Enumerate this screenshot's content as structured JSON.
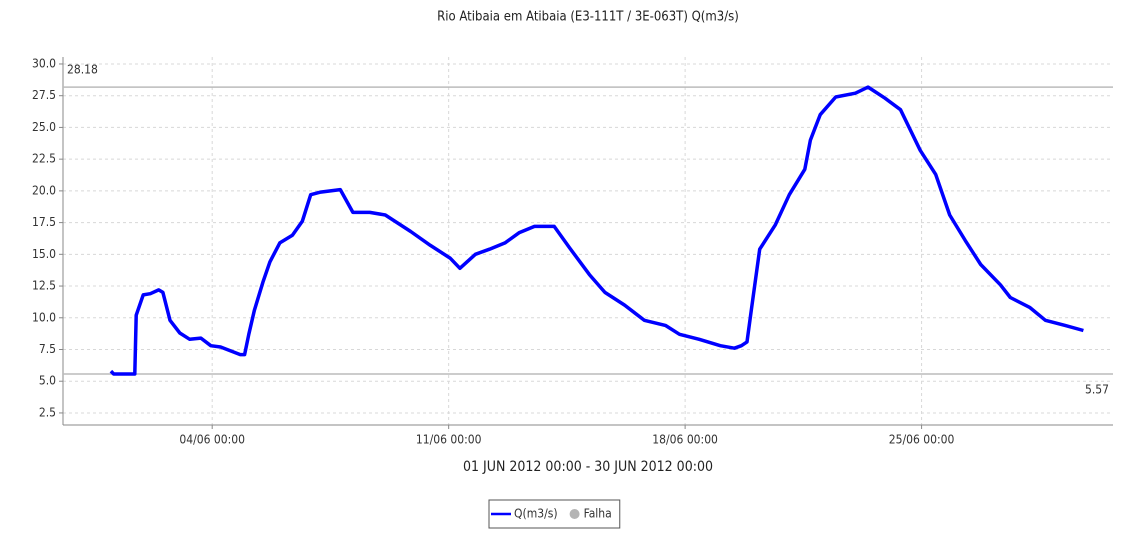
{
  "chart_data": {
    "type": "line",
    "title": "Rio Atibaia em Atibaia (E3-111T / 3E-063T) Q(m3/s)",
    "x_label": "01 JUN 2012 00:00 - 30 JUN 2012 00:00",
    "x": [
      "2012-06-01T00:00",
      "2012-06-01T02:00",
      "2012-06-01T17:00",
      "2012-06-01T18:00",
      "2012-06-01T23:00",
      "2012-06-02T04:00",
      "2012-06-02T10:00",
      "2012-06-02T13:00",
      "2012-06-02T18:00",
      "2012-06-03T01:00",
      "2012-06-03T08:00",
      "2012-06-03T16:00",
      "2012-06-03T23:00",
      "2012-06-04T06:00",
      "2012-06-04T20:00",
      "2012-06-04T23:00",
      "2012-06-05T02:00",
      "2012-06-05T06:00",
      "2012-06-05T12:00",
      "2012-06-05T17:00",
      "2012-06-06T00:00",
      "2012-06-06T09:00",
      "2012-06-06T16:00",
      "2012-06-06T22:00",
      "2012-06-07T05:00",
      "2012-06-07T19:00",
      "2012-06-08T04:00",
      "2012-06-08T16:00",
      "2012-06-09T03:00",
      "2012-06-09T21:00",
      "2012-06-10T11:00",
      "2012-06-11T01:00",
      "2012-06-11T08:00",
      "2012-06-11T19:00",
      "2012-06-12T05:00",
      "2012-06-12T16:00",
      "2012-06-13T02:00",
      "2012-06-13T13:00",
      "2012-06-14T03:00",
      "2012-06-14T14:00",
      "2012-06-15T04:00",
      "2012-06-15T15:00",
      "2012-06-16T05:00",
      "2012-06-16T19:00",
      "2012-06-17T10:00",
      "2012-06-17T20:00",
      "2012-06-18T10:00",
      "2012-06-19T01:00",
      "2012-06-19T11:00",
      "2012-06-19T16:00",
      "2012-06-19T20:00",
      "2012-06-19T23:00",
      "2012-06-20T05:00",
      "2012-06-20T16:00",
      "2012-06-21T02:00",
      "2012-06-21T13:00",
      "2012-06-21T17:00",
      "2012-06-22T00:00",
      "2012-06-22T11:00",
      "2012-06-23T01:00",
      "2012-06-23T10:00",
      "2012-06-23T22:00",
      "2012-06-24T09:00",
      "2012-06-24T23:00",
      "2012-06-25T10:00",
      "2012-06-25T20:00",
      "2012-06-26T07:00",
      "2012-06-26T18:00",
      "2012-06-27T08:00",
      "2012-06-27T15:00",
      "2012-06-28T05:00",
      "2012-06-28T16:00",
      "2012-06-29T06:00",
      "2012-06-29T19:00"
    ],
    "series": [
      {
        "name": "Q(m3/s)",
        "color": "#0000ff",
        "values": [
          5.8,
          5.57,
          5.57,
          10.2,
          11.8,
          11.9,
          12.2,
          12.0,
          9.8,
          8.8,
          8.3,
          8.4,
          7.8,
          7.7,
          7.1,
          7.1,
          8.7,
          10.6,
          12.8,
          14.4,
          15.9,
          16.5,
          17.6,
          19.7,
          19.9,
          20.1,
          18.3,
          18.3,
          18.1,
          16.8,
          15.7,
          14.7,
          13.9,
          15.0,
          15.4,
          15.9,
          16.7,
          17.2,
          17.2,
          15.5,
          13.4,
          12.0,
          11.0,
          9.8,
          9.4,
          8.7,
          8.3,
          7.8,
          7.6,
          7.8,
          8.1,
          10.6,
          15.4,
          17.3,
          19.7,
          21.7,
          24.0,
          26.0,
          27.4,
          27.7,
          28.18,
          27.3,
          26.4,
          23.2,
          21.3,
          18.1,
          16.1,
          14.2,
          12.6,
          11.6,
          10.8,
          9.8,
          9.4,
          9.0
        ]
      }
    ],
    "extra_legend": [
      {
        "name": "Falha",
        "color": "#b4b4b4"
      }
    ],
    "reference_lines": [
      {
        "value": 28.18,
        "corner": "top-left"
      },
      {
        "value": 5.57,
        "corner": "bottom-right"
      }
    ],
    "xlim": [
      "2012-05-30T14:00",
      "2012-06-30T16:00"
    ],
    "xticks": [
      {
        "value": "2012-06-04T00:00",
        "label": "04/06 00:00"
      },
      {
        "value": "2012-06-11T00:00",
        "label": "11/06 00:00"
      },
      {
        "value": "2012-06-18T00:00",
        "label": "18/06 00:00"
      },
      {
        "value": "2012-06-25T00:00",
        "label": "25/06 00:00"
      }
    ],
    "ylim": [
      1.55,
      30.55
    ],
    "yticks": [
      {
        "value": 2.5,
        "label": "2.5"
      },
      {
        "value": 5,
        "label": "5.0"
      },
      {
        "value": 7.5,
        "label": "7.5"
      },
      {
        "value": 10,
        "label": "10.0"
      },
      {
        "value": 12.5,
        "label": "12.5"
      },
      {
        "value": 15,
        "label": "15.0"
      },
      {
        "value": 17.5,
        "label": "17.5"
      },
      {
        "value": 20,
        "label": "20.0"
      },
      {
        "value": 22.5,
        "label": "22.5"
      },
      {
        "value": 25,
        "label": "25.0"
      },
      {
        "value": 27.5,
        "label": "27.5"
      },
      {
        "value": 30,
        "label": "30.0"
      }
    ],
    "grid": true,
    "legend": "bottom"
  }
}
